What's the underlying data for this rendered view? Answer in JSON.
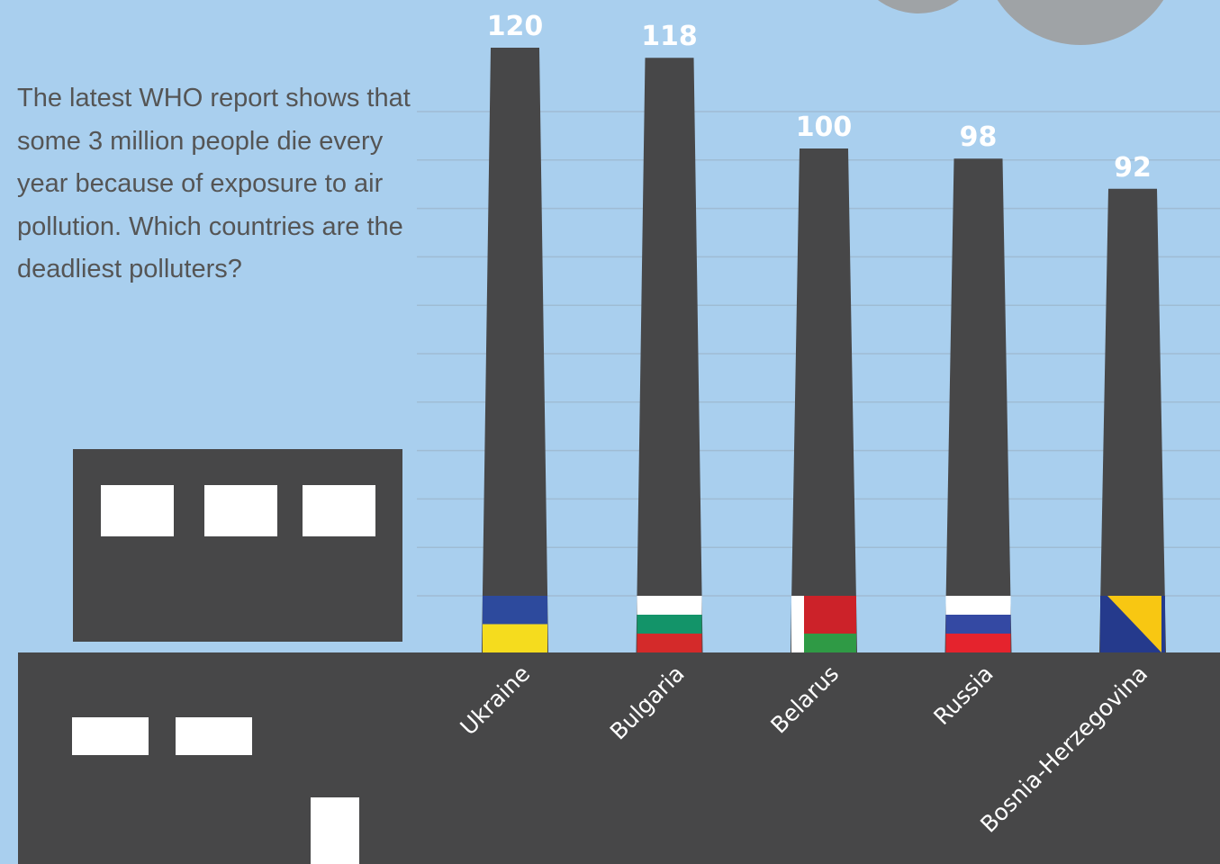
{
  "chart_data": {
    "type": "bar",
    "subtitle": "The latest WHO report shows that some 3 million people die every year because of exposure to air pollution. Which countries are the deadliest polluters?",
    "categories": [
      "Ukraine",
      "Bulgaria",
      "Belarus",
      "Russia",
      "Bosnia-Herzegovina"
    ],
    "values": [
      120,
      118,
      100,
      98,
      92
    ],
    "color": "#474748",
    "flag_colors": [
      [
        "#2d4a9d",
        "#f5dc1e"
      ],
      [
        "#ffffff",
        "#139469",
        "#d42a2a"
      ],
      [
        "#cc2229",
        "#cc2229",
        "#2f9a45"
      ],
      [
        "#ffffff",
        "#3449a3",
        "#e5232d"
      ],
      [
        "#253a8c",
        "#f8c712"
      ]
    ]
  }
}
